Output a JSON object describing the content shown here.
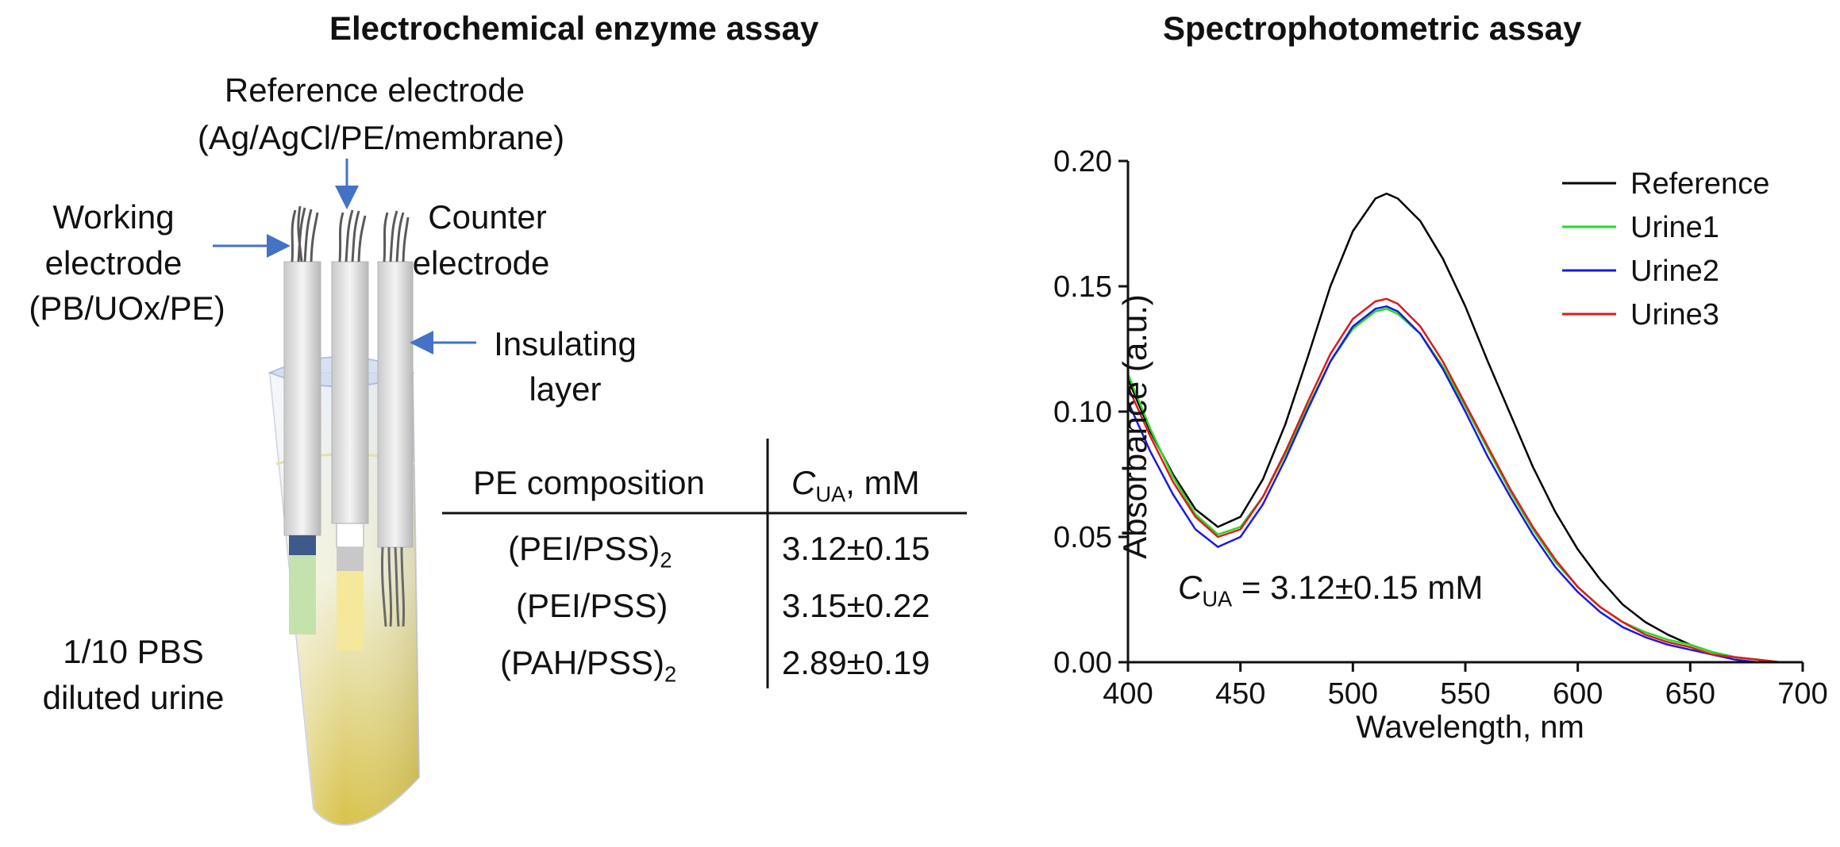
{
  "left": {
    "title": "Electrochemical enzyme assay",
    "labels": {
      "reference_line1": "Reference electrode",
      "reference_line2": "(Ag/AgCl/PE/membrane)",
      "working_line1": "Working",
      "working_line2": "electrode",
      "working_line3": "(PB/UOx/PE)",
      "counter_line1": "Counter",
      "counter_line2": "electrode",
      "insulating_line1": "Insulating",
      "insulating_line2": "layer",
      "sample_line1": "1/10 PBS",
      "sample_line2": "diluted urine"
    },
    "table": {
      "header_col1": "PE composition",
      "header_col2_symbol": "C",
      "header_col2_sub": "UA",
      "header_col2_unit": ", mM",
      "rows": [
        {
          "name": "(PEI/PSS)",
          "sub": "2",
          "value": "3.12±0.15"
        },
        {
          "name": "(PEI/PSS)",
          "sub": "",
          "value": "3.15±0.22"
        },
        {
          "name": "(PAH/PSS)",
          "sub": "2",
          "value": "2.89±0.19"
        }
      ]
    }
  },
  "chart_data": {
    "type": "line",
    "title": "Spectrophotometric assay",
    "xlabel": "Wavelength, nm",
    "ylabel": "Absorbance (a.u.)",
    "xlim": [
      400,
      700
    ],
    "ylim": [
      0,
      0.2
    ],
    "xticks": [
      "400",
      "450",
      "500",
      "550",
      "600",
      "650",
      "700"
    ],
    "yticks": [
      "0.00",
      "0.05",
      "0.10",
      "0.15",
      "0.20"
    ],
    "annotation": {
      "symbol": "C",
      "sub": "UA",
      "text": " = 3.12±0.15 mM"
    },
    "legend_position": "top-right",
    "x": [
      400,
      410,
      420,
      430,
      440,
      450,
      460,
      470,
      480,
      490,
      500,
      510,
      515,
      520,
      530,
      540,
      550,
      560,
      570,
      580,
      590,
      600,
      610,
      620,
      630,
      640,
      650,
      660,
      670,
      680,
      690,
      700
    ],
    "series": [
      {
        "name": "Reference",
        "color": "#000000",
        "values": [
          0.113,
          0.092,
          0.075,
          0.061,
          0.054,
          0.058,
          0.073,
          0.095,
          0.122,
          0.15,
          0.172,
          0.185,
          0.187,
          0.185,
          0.176,
          0.161,
          0.142,
          0.12,
          0.099,
          0.078,
          0.06,
          0.045,
          0.033,
          0.023,
          0.016,
          0.011,
          0.007,
          0.004,
          0.002,
          0.001,
          0.0,
          0.0
        ]
      },
      {
        "name": "Urine1",
        "color": "#22dd22",
        "values": [
          0.115,
          0.093,
          0.074,
          0.059,
          0.051,
          0.054,
          0.066,
          0.083,
          0.102,
          0.12,
          0.133,
          0.14,
          0.141,
          0.139,
          0.131,
          0.118,
          0.102,
          0.085,
          0.068,
          0.053,
          0.04,
          0.03,
          0.022,
          0.016,
          0.012,
          0.009,
          0.007,
          0.004,
          0.002,
          0.001,
          0.0,
          0.0
        ]
      },
      {
        "name": "Urine2",
        "color": "#1a1adf",
        "values": [
          0.104,
          0.084,
          0.067,
          0.053,
          0.046,
          0.05,
          0.063,
          0.081,
          0.101,
          0.12,
          0.134,
          0.141,
          0.142,
          0.14,
          0.131,
          0.117,
          0.1,
          0.082,
          0.066,
          0.051,
          0.038,
          0.028,
          0.02,
          0.014,
          0.01,
          0.007,
          0.005,
          0.003,
          0.001,
          0.0,
          0.0,
          0.0
        ]
      },
      {
        "name": "Urine3",
        "color": "#e01a1a",
        "values": [
          0.11,
          0.09,
          0.072,
          0.058,
          0.05,
          0.053,
          0.066,
          0.084,
          0.104,
          0.123,
          0.137,
          0.144,
          0.145,
          0.143,
          0.134,
          0.12,
          0.103,
          0.086,
          0.069,
          0.054,
          0.041,
          0.03,
          0.022,
          0.016,
          0.011,
          0.008,
          0.006,
          0.003,
          0.002,
          0.001,
          0.0,
          0.0
        ]
      }
    ]
  }
}
